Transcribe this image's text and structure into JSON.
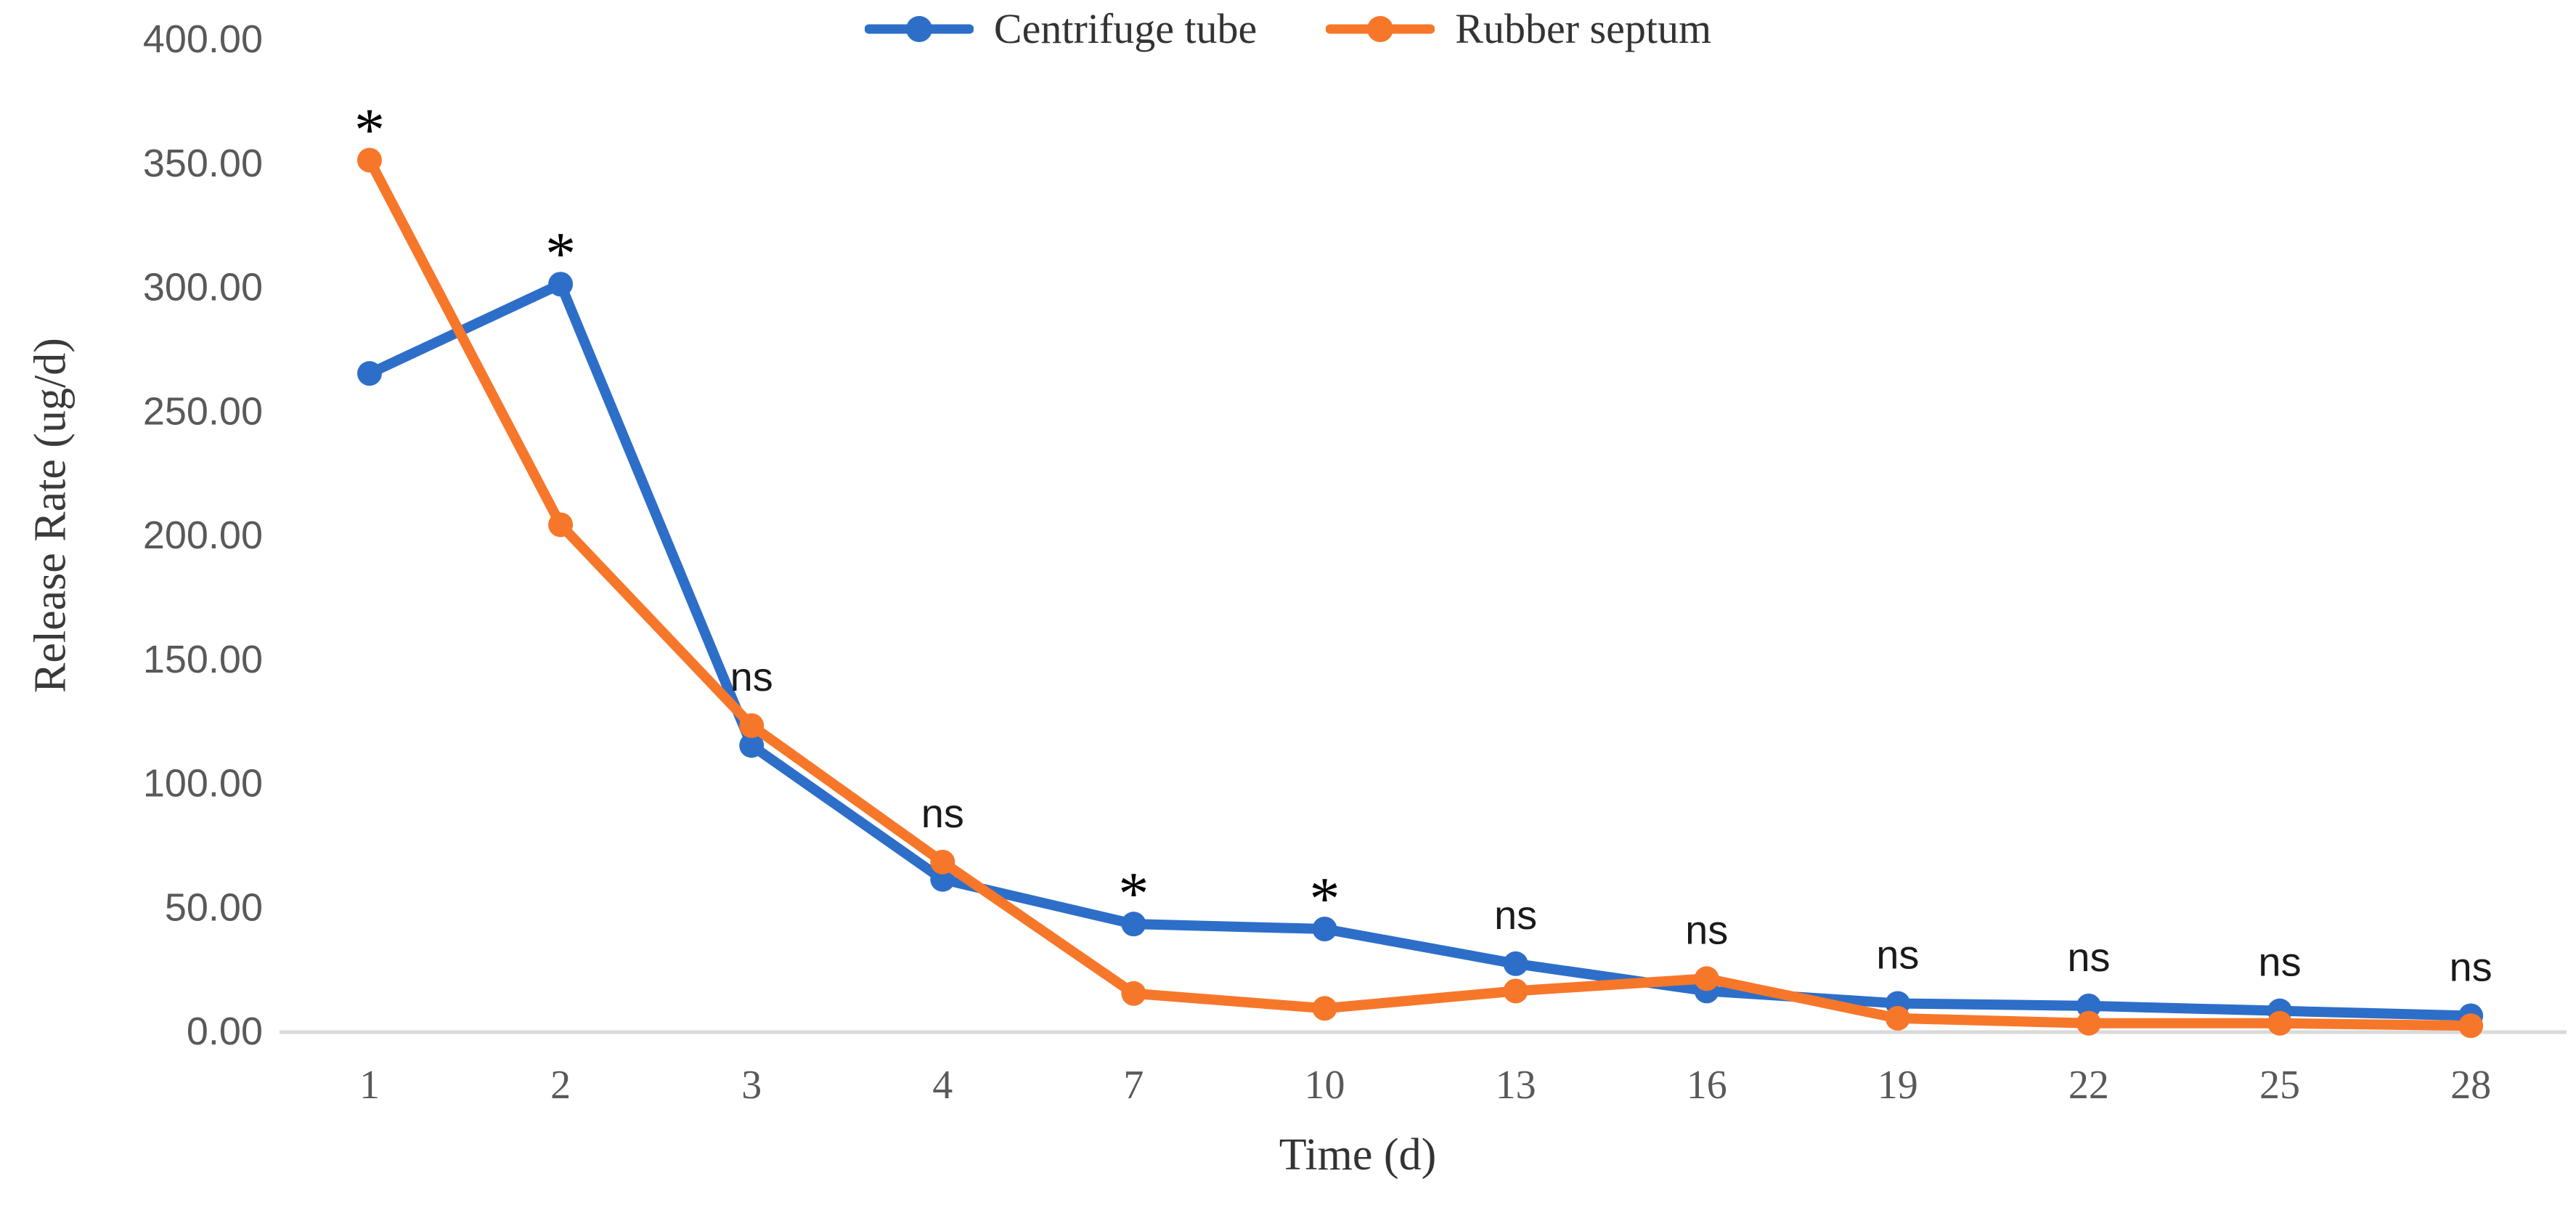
{
  "figure": {
    "background_color": "#ffffff",
    "baseline_color": "#d9d9d9",
    "tick_label_color": "#595959",
    "text_color": "#333333"
  },
  "legend": {
    "items": [
      {
        "label": "Centrifuge tube",
        "color": "#2d6ec9"
      },
      {
        "label": "Rubber septum",
        "color": "#f7772a"
      }
    ]
  },
  "axes": {
    "y": {
      "title": "Release Rate (ug/d)",
      "tick_labels": [
        "0.00",
        "50.00",
        "100.00",
        "150.00",
        "200.00",
        "250.00",
        "300.00",
        "350.00",
        "400.00"
      ]
    },
    "x": {
      "title": "Time (d)",
      "tick_labels": [
        "1",
        "2",
        "3",
        "4",
        "7",
        "10",
        "13",
        "16",
        "19",
        "22",
        "25",
        "28"
      ]
    }
  },
  "chart_data": {
    "type": "line",
    "title": "",
    "xlabel": "Time (d)",
    "ylabel": "Release Rate (ug/d)",
    "x": [
      1,
      2,
      3,
      4,
      7,
      10,
      13,
      16,
      19,
      22,
      25,
      28
    ],
    "x_axis_type": "categorical-evenly-spaced",
    "ylim": [
      0,
      400
    ],
    "y_tick_step": 50,
    "grid": false,
    "legend_position": "top-center",
    "series": [
      {
        "name": "Centrifuge tube",
        "color": "#2d6ec9",
        "marker": "circle",
        "values": [
          265,
          301,
          115,
          61,
          43,
          41,
          27,
          16,
          11,
          10,
          8,
          6
        ]
      },
      {
        "name": "Rubber septum",
        "color": "#f7772a",
        "marker": "circle",
        "values": [
          351,
          204,
          123,
          68,
          15,
          9,
          16,
          21,
          5,
          3,
          3,
          2
        ]
      }
    ],
    "annotations": [
      {
        "x": 1,
        "text": "*"
      },
      {
        "x": 2,
        "text": "*"
      },
      {
        "x": 3,
        "text": "ns"
      },
      {
        "x": 4,
        "text": "ns"
      },
      {
        "x": 7,
        "text": "*"
      },
      {
        "x": 10,
        "text": "*"
      },
      {
        "x": 13,
        "text": "ns"
      },
      {
        "x": 16,
        "text": "ns"
      },
      {
        "x": 19,
        "text": "ns"
      },
      {
        "x": 22,
        "text": "ns"
      },
      {
        "x": 25,
        "text": "ns"
      },
      {
        "x": 28,
        "text": "ns"
      }
    ]
  }
}
